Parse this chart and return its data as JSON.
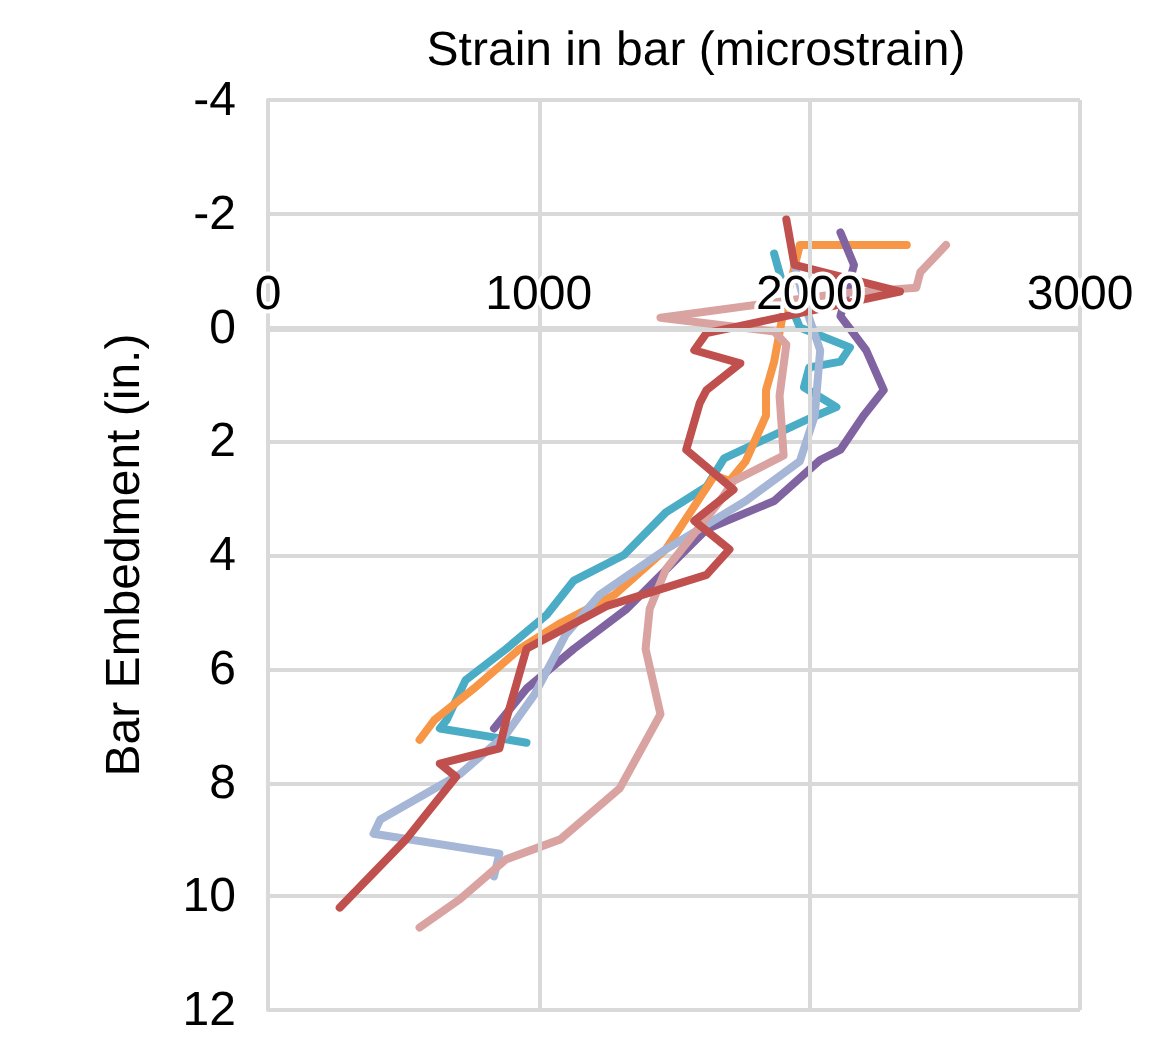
{
  "chart_data": {
    "type": "line",
    "xlabel": "Strain in bar (microstrain)",
    "ylabel": "Bar Embedment (in.)",
    "xlim": [
      0,
      3000
    ],
    "xticks": [
      0,
      1000,
      2000,
      3000
    ],
    "ylim": [
      12,
      -4
    ],
    "yticks": [
      -4,
      -2,
      0,
      2,
      4,
      6,
      8,
      10,
      12
    ],
    "grid": true,
    "marker": "none",
    "line_style": "solid",
    "series": [
      {
        "color": "#4bacc6",
        "x": [
          1870,
          1905,
          1965,
          2150,
          2115,
          2000,
          1980,
          2100,
          2000,
          1685,
          1620,
          1470,
          1315,
          1130,
          1030,
          880,
          730,
          660,
          635,
          955
        ],
        "values": [
          -1.3,
          -0.7,
          0,
          0.35,
          0.6,
          0.7,
          1.05,
          1.4,
          1.6,
          2.3,
          2.8,
          3.25,
          4.0,
          4.45,
          5.05,
          5.65,
          6.2,
          6.9,
          7.05,
          7.3
        ]
      },
      {
        "color": "#f79646",
        "x": [
          2360,
          1965,
          1905,
          1870,
          1840,
          1840,
          1765,
          1705,
          1650,
          1470,
          1280,
          1080,
          930,
          760,
          615,
          560
        ],
        "values": [
          -1.45,
          -1.45,
          -0.3,
          0.6,
          1.1,
          1.55,
          2.35,
          2.7,
          2.6,
          3.9,
          4.7,
          5.2,
          5.65,
          6.35,
          6.9,
          7.25
        ]
      },
      {
        "color": "#8064a2",
        "x": [
          2115,
          2165,
          2115,
          2210,
          2275,
          2200,
          2115,
          2040,
          1870,
          1620,
          1325,
          1130,
          955,
          835
        ],
        "values": [
          -1.67,
          -1.1,
          -0.2,
          0.4,
          1.1,
          1.55,
          2.15,
          2.33,
          3.05,
          3.55,
          4.95,
          5.65,
          6.35,
          7.05
        ]
      },
      {
        "color": "#a5b6d6",
        "x": [
          1945,
          1990,
          2040,
          2020,
          1965,
          1765,
          1470,
          1225,
          1100,
          985,
          880,
          710,
          415,
          390,
          855,
          835
        ],
        "values": [
          -1.1,
          -0.3,
          0.4,
          1.55,
          2.35,
          3.05,
          3.9,
          4.7,
          5.4,
          6.45,
          7.15,
          7.85,
          8.65,
          8.9,
          9.25,
          9.65
        ]
      },
      {
        "color": "#d9a3a2",
        "x": [
          2505,
          2410,
          2395,
          2115,
          1450,
          1870,
          1915,
          1890,
          1905,
          1720,
          1670,
          1470,
          1410,
          1395,
          1450,
          1300,
          1080,
          880,
          710,
          560
        ],
        "values": [
          -1.45,
          -0.97,
          -0.7,
          -0.6,
          -0.17,
          0.07,
          0.3,
          1.2,
          2.25,
          2.7,
          3.05,
          4.25,
          4.95,
          5.65,
          6.8,
          8.1,
          9.0,
          9.35,
          10.05,
          10.55
        ]
      },
      {
        "color": "#c0504d",
        "x": [
          1915,
          1945,
          2335,
          1620,
          1575,
          1745,
          1620,
          1595,
          1545,
          1720,
          1575,
          1705,
          1620,
          1250,
          955,
          880,
          855,
          635,
          695,
          510,
          265
        ],
        "values": [
          -1.9,
          -1.1,
          -0.63,
          0.1,
          0.4,
          0.63,
          1.1,
          1.33,
          2.15,
          2.85,
          3.4,
          3.9,
          4.35,
          4.9,
          5.65,
          6.9,
          7.4,
          7.67,
          7.9,
          9.0,
          10.2
        ]
      }
    ]
  }
}
